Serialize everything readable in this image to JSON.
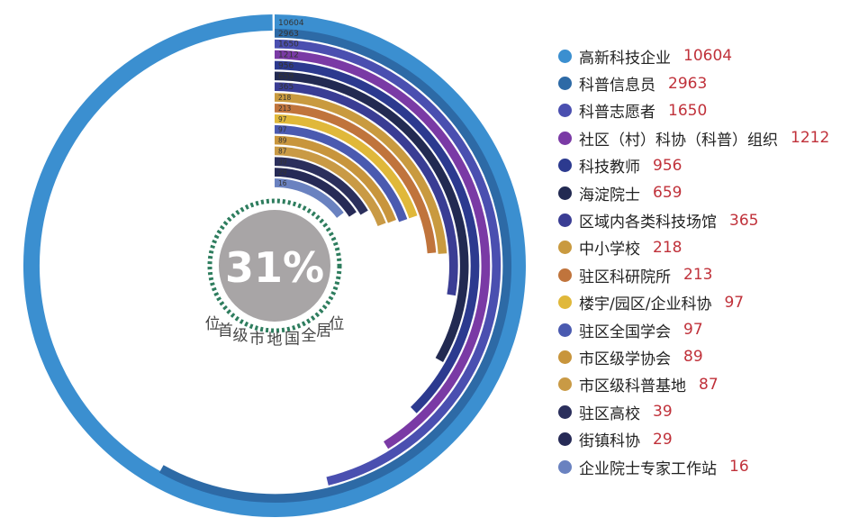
{
  "chart_data": {
    "type": "radial-bar",
    "center_label": "31%",
    "arc_text": [
      "位",
      "居",
      "全",
      "国",
      "地",
      "市",
      "级",
      "首",
      "位"
    ],
    "categories": [
      "高新科技企业",
      "科普信息员",
      "科普志愿者",
      "社区（村）科协（科普）组织",
      "科技教师",
      "海淀院士",
      "区域内各类科技场馆",
      "中小学校",
      "驻区科研院所",
      "楼宇/园区/企业科协",
      "驻区全国学会",
      "市区级学协会",
      "市区级科普基地",
      "驻区高校",
      "街镇科协",
      "企业院士专家工作站"
    ],
    "values": [
      10604,
      2963,
      1650,
      1212,
      956,
      659,
      365,
      218,
      213,
      97,
      97,
      89,
      87,
      39,
      29,
      16
    ],
    "colors": [
      "#3b8fd0",
      "#2d6aa6",
      "#4a4fb0",
      "#7a3aa5",
      "#2c3a8f",
      "#222a52",
      "#3a3d94",
      "#c99a3f",
      "#c0743c",
      "#e0b83a",
      "#4a5ab0",
      "#c8953c",
      "#c99a45",
      "#2b2f5c",
      "#262a56",
      "#6a82c0"
    ]
  }
}
